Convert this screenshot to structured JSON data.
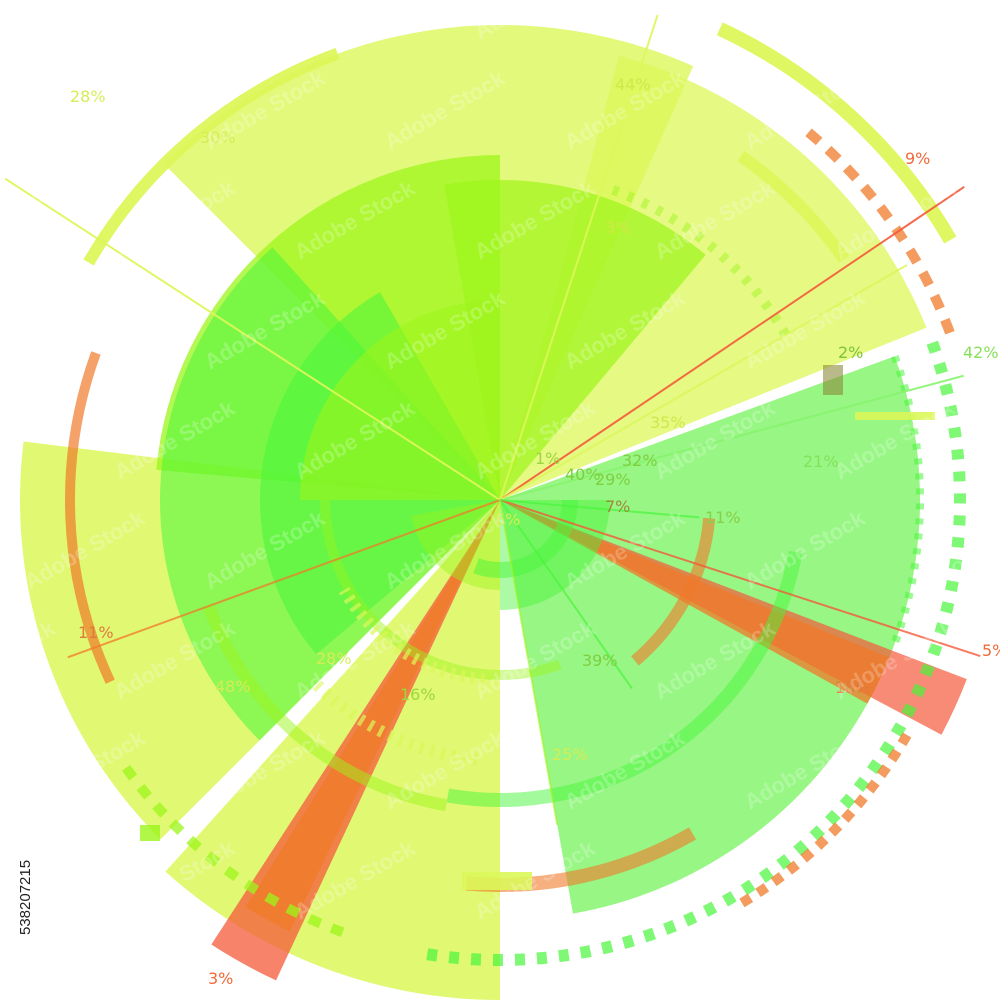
{
  "artwork": {
    "kind": "circular percentage infographic",
    "colors": {
      "yellow": "#dcf75a",
      "lime": "#9cf51a",
      "green": "#48f53a",
      "light_green": "#86f46e",
      "orange": "#f07a2a",
      "red_orange": "#f45a3a"
    },
    "labels": [
      "44%",
      "28%",
      "30%",
      "9%",
      "3%",
      "2%",
      "42%",
      "35%",
      "1%",
      "32%",
      "40%",
      "29%",
      "7%",
      "21%",
      "11%",
      "6%",
      "11%",
      "28%",
      "48%",
      "16%",
      "39%",
      "25%",
      "18%",
      "5%",
      "3%"
    ]
  },
  "watermark": {
    "text": "Adobe Stock",
    "stock_id": "538207215"
  }
}
